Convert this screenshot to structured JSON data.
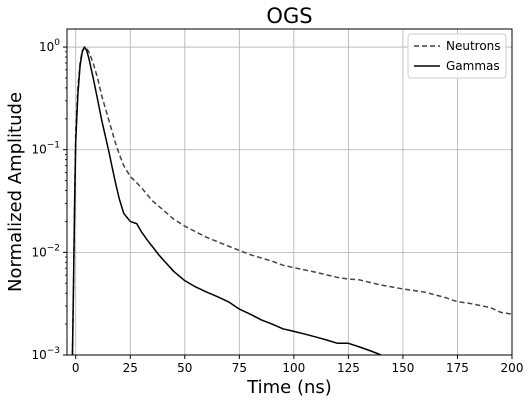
{
  "chart_data": {
    "type": "line",
    "title": "OGS",
    "xlabel": "Time (ns)",
    "ylabel": "Normalized Amplitude",
    "xlim": [
      -4,
      200
    ],
    "ylim": [
      0.001,
      1.5
    ],
    "yscale": "log",
    "grid": true,
    "legend_position": "top-right",
    "x_ticks": [
      0,
      25,
      50,
      75,
      100,
      125,
      150,
      175,
      200
    ],
    "x_tick_labels": [
      "0",
      "25",
      "50",
      "75",
      "100",
      "125",
      "150",
      "175",
      "200"
    ],
    "y_ticks": [
      0.001,
      0.01,
      0.1,
      1
    ],
    "y_tick_labels": [
      {
        "base": "10",
        "exp": "−3"
      },
      {
        "base": "10",
        "exp": "−2"
      },
      {
        "base": "10",
        "exp": "−1"
      },
      {
        "base": "10",
        "exp": "0"
      }
    ],
    "series": [
      {
        "name": "Neutrons",
        "style": "dashed",
        "color": "#444444",
        "points": [
          [
            -1.5,
            0.001
          ],
          [
            -1,
            0.005
          ],
          [
            -0.5,
            0.03
          ],
          [
            0,
            0.15
          ],
          [
            1,
            0.4
          ],
          [
            2,
            0.7
          ],
          [
            3,
            0.92
          ],
          [
            4,
            1.0
          ],
          [
            5,
            0.97
          ],
          [
            6,
            0.9
          ],
          [
            8,
            0.7
          ],
          [
            10,
            0.5
          ],
          [
            12,
            0.33
          ],
          [
            15,
            0.2
          ],
          [
            18,
            0.12
          ],
          [
            20,
            0.09
          ],
          [
            22,
            0.07
          ],
          [
            25,
            0.055
          ],
          [
            30,
            0.043
          ],
          [
            35,
            0.032
          ],
          [
            40,
            0.026
          ],
          [
            45,
            0.021
          ],
          [
            50,
            0.018
          ],
          [
            60,
            0.014
          ],
          [
            70,
            0.0115
          ],
          [
            80,
            0.0095
          ],
          [
            90,
            0.0082
          ],
          [
            95,
            0.0075
          ],
          [
            100,
            0.0071
          ],
          [
            110,
            0.0064
          ],
          [
            120,
            0.0057
          ],
          [
            125,
            0.0055
          ],
          [
            130,
            0.0054
          ],
          [
            140,
            0.0048
          ],
          [
            150,
            0.0044
          ],
          [
            160,
            0.0041
          ],
          [
            170,
            0.0036
          ],
          [
            175,
            0.0033
          ],
          [
            180,
            0.0032
          ],
          [
            190,
            0.0029
          ],
          [
            195,
            0.0026
          ],
          [
            200,
            0.0025
          ]
        ]
      },
      {
        "name": "Gammas",
        "style": "solid",
        "color": "#000000",
        "points": [
          [
            -1.5,
            0.001
          ],
          [
            -1,
            0.005
          ],
          [
            -0.5,
            0.03
          ],
          [
            0,
            0.12
          ],
          [
            1,
            0.35
          ],
          [
            2,
            0.66
          ],
          [
            3,
            0.9
          ],
          [
            4,
            1.0
          ],
          [
            5,
            0.93
          ],
          [
            6,
            0.78
          ],
          [
            8,
            0.5
          ],
          [
            10,
            0.31
          ],
          [
            12,
            0.19
          ],
          [
            15,
            0.1
          ],
          [
            18,
            0.05
          ],
          [
            20,
            0.033
          ],
          [
            22,
            0.024
          ],
          [
            25,
            0.02
          ],
          [
            28,
            0.019
          ],
          [
            30,
            0.016
          ],
          [
            33,
            0.013
          ],
          [
            35,
            0.0115
          ],
          [
            38,
            0.0095
          ],
          [
            40,
            0.0085
          ],
          [
            45,
            0.0065
          ],
          [
            50,
            0.0053
          ],
          [
            55,
            0.0046
          ],
          [
            60,
            0.0041
          ],
          [
            65,
            0.0037
          ],
          [
            70,
            0.0033
          ],
          [
            75,
            0.0028
          ],
          [
            80,
            0.0025
          ],
          [
            85,
            0.0022
          ],
          [
            90,
            0.002
          ],
          [
            95,
            0.0018
          ],
          [
            100,
            0.0017
          ],
          [
            105,
            0.0016
          ],
          [
            110,
            0.0015
          ],
          [
            115,
            0.0014
          ],
          [
            120,
            0.0013
          ],
          [
            125,
            0.0013
          ],
          [
            130,
            0.0012
          ],
          [
            135,
            0.0011
          ],
          [
            140,
            0.001
          ]
        ]
      }
    ]
  }
}
